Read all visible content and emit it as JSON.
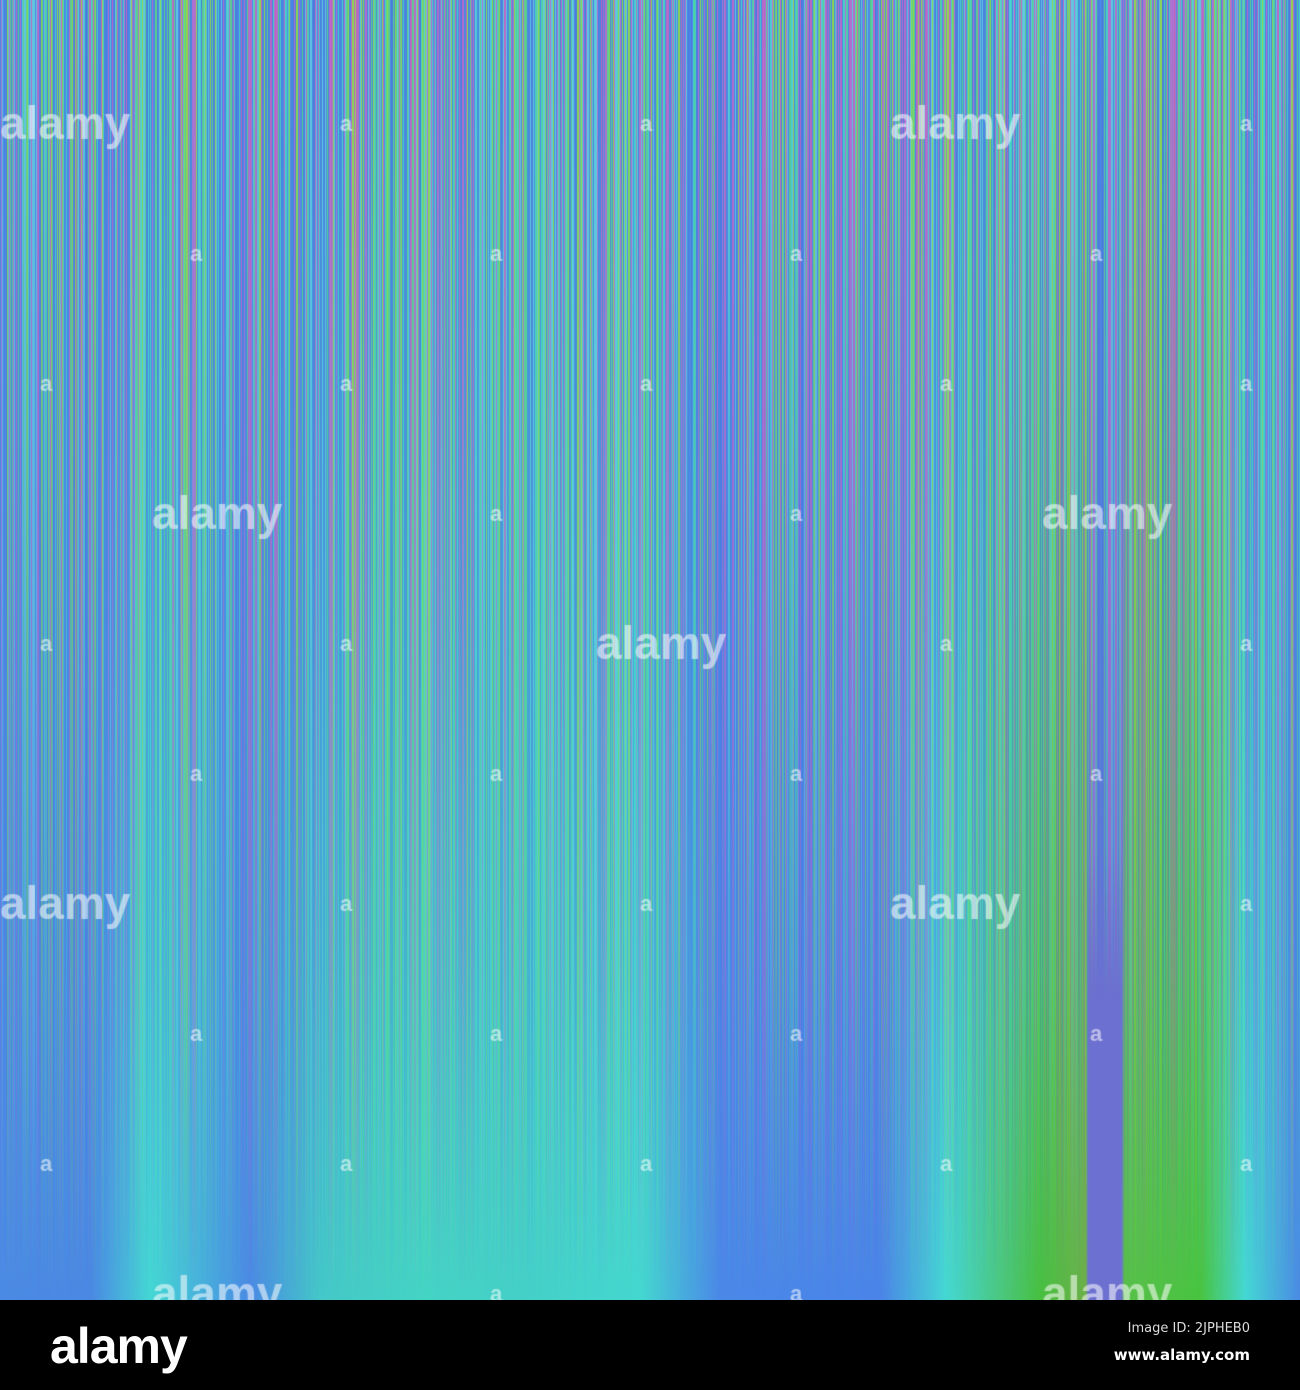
{
  "image": {
    "palette": [
      "#4a86e4",
      "#44d4c8",
      "#54c860",
      "#c064c4",
      "#8fd84a",
      "#6a70d8"
    ],
    "watermark_text": "alamy"
  },
  "footer": {
    "logo": "alamy",
    "image_id": "Image ID: 2JPHEB0",
    "website": "www.alamy.com"
  }
}
